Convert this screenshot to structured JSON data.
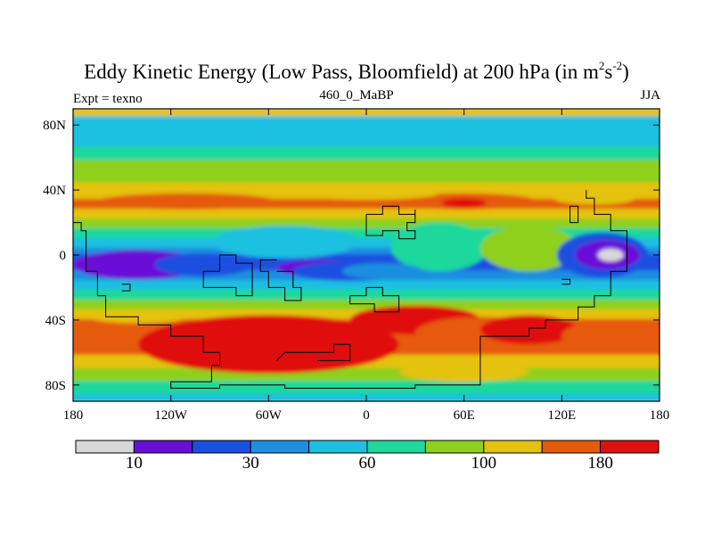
{
  "header": {
    "title_main": "Eddy Kinetic Energy (Low Pass, Bloomfield) at 200 hPa (in m",
    "title_sup1": "2",
    "title_mid": "s",
    "title_sup2": "-2",
    "title_end": ")",
    "left_label": "Expt = texno",
    "center_label": "460_0_MaBP",
    "right_label": "JJA"
  },
  "chart_data": {
    "type": "heatmap",
    "projection": "cylindrical equidistant",
    "x_range": [
      -180,
      180
    ],
    "y_range": [
      -90,
      90
    ],
    "x_ticks": [
      {
        "value": -180,
        "label": "180"
      },
      {
        "value": -120,
        "label": "120W"
      },
      {
        "value": -60,
        "label": "60W"
      },
      {
        "value": 0,
        "label": "0"
      },
      {
        "value": 60,
        "label": "60E"
      },
      {
        "value": 120,
        "label": "120E"
      },
      {
        "value": 180,
        "label": "180"
      }
    ],
    "y_ticks": [
      {
        "value": 80,
        "label": "80N"
      },
      {
        "value": 40,
        "label": "40N"
      },
      {
        "value": 0,
        "label": "0"
      },
      {
        "value": -40,
        "label": "40S"
      },
      {
        "value": -80,
        "label": "80S"
      }
    ],
    "colorbar": {
      "colors": [
        "#d7d7d7",
        "#6a0fd6",
        "#1a4fe0",
        "#1f8ee0",
        "#1ec0e0",
        "#1ed89c",
        "#8ed01e",
        "#e4c210",
        "#e65a0a",
        "#e01010"
      ],
      "bound_labels": [
        {
          "after_box": 1,
          "label": "10"
        },
        {
          "after_box": 3,
          "label": "30"
        },
        {
          "after_box": 5,
          "label": "60"
        },
        {
          "after_box": 7,
          "label": "100"
        },
        {
          "after_box": 9,
          "label": "180"
        }
      ]
    },
    "bands": [
      {
        "lat": 90,
        "level": 7
      },
      {
        "lat": 85,
        "level": 4
      },
      {
        "lat": 80,
        "level": 4
      },
      {
        "lat": 72,
        "level": 4
      },
      {
        "lat": 66,
        "level": 5
      },
      {
        "lat": 58,
        "level": 6
      },
      {
        "lat": 50,
        "level": 6
      },
      {
        "lat": 44,
        "level": 7
      },
      {
        "lat": 40,
        "level": 7
      },
      {
        "lat": 34,
        "level": 8
      },
      {
        "lat": 28,
        "level": 7
      },
      {
        "lat": 22,
        "level": 6
      },
      {
        "lat": 16,
        "level": 5
      },
      {
        "lat": 10,
        "level": 4
      },
      {
        "lat": 4,
        "level": 3
      },
      {
        "lat": 0,
        "level": 2
      },
      {
        "lat": -4,
        "level": 2
      },
      {
        "lat": -10,
        "level": 3
      },
      {
        "lat": -16,
        "level": 4
      },
      {
        "lat": -22,
        "level": 5
      },
      {
        "lat": -28,
        "level": 6
      },
      {
        "lat": -34,
        "level": 7
      },
      {
        "lat": -40,
        "level": 8
      },
      {
        "lat": -48,
        "level": 8
      },
      {
        "lat": -56,
        "level": 8
      },
      {
        "lat": -62,
        "level": 7
      },
      {
        "lat": -70,
        "level": 6
      },
      {
        "lat": -78,
        "level": 5
      },
      {
        "lat": -86,
        "level": 4
      },
      {
        "lat": -90,
        "level": 4
      }
    ],
    "features": [
      {
        "lon": -110,
        "lat": 33,
        "rx": 55,
        "ry": 5,
        "level": 8
      },
      {
        "lon": 60,
        "lat": 33,
        "rx": 45,
        "ry": 5,
        "level": 8
      },
      {
        "lon": 60,
        "lat": 32,
        "rx": 14,
        "ry": 3,
        "level": 9
      },
      {
        "lon": 140,
        "lat": 35,
        "rx": 25,
        "ry": 4,
        "level": 7
      },
      {
        "lon": 0,
        "lat": 38,
        "rx": 45,
        "ry": 4,
        "level": 7
      },
      {
        "lon": -50,
        "lat": 8,
        "rx": 45,
        "ry": 10,
        "level": 4
      },
      {
        "lon": 45,
        "lat": 5,
        "rx": 30,
        "ry": 15,
        "level": 5
      },
      {
        "lon": 100,
        "lat": 4,
        "rx": 30,
        "ry": 14,
        "level": 6
      },
      {
        "lon": 145,
        "lat": 0,
        "rx": 28,
        "ry": 14,
        "level": 2
      },
      {
        "lon": 148,
        "lat": 0,
        "rx": 20,
        "ry": 9,
        "level": 1
      },
      {
        "lon": 150,
        "lat": 0,
        "rx": 8,
        "ry": 4,
        "level": 0
      },
      {
        "lon": -140,
        "lat": -6,
        "rx": 40,
        "ry": 9,
        "level": 1
      },
      {
        "lon": -100,
        "lat": -6,
        "rx": 30,
        "ry": 7,
        "level": 2
      },
      {
        "lon": -30,
        "lat": -8,
        "rx": 25,
        "ry": 5,
        "level": 1
      },
      {
        "lon": -10,
        "lat": -10,
        "rx": 35,
        "ry": 6,
        "level": 2
      },
      {
        "lon": 10,
        "lat": -10,
        "rx": 25,
        "ry": 5,
        "level": 3
      },
      {
        "lon": -140,
        "lat": -38,
        "rx": 30,
        "ry": 4,
        "level": 7
      },
      {
        "lon": -60,
        "lat": -55,
        "rx": 80,
        "ry": 18,
        "level": 9
      },
      {
        "lon": 30,
        "lat": -40,
        "rx": 40,
        "ry": 9,
        "level": 9
      },
      {
        "lon": 70,
        "lat": -48,
        "rx": 40,
        "ry": 10,
        "level": 8
      },
      {
        "lon": 100,
        "lat": -46,
        "rx": 30,
        "ry": 9,
        "level": 9
      },
      {
        "lon": 150,
        "lat": -50,
        "rx": 30,
        "ry": 10,
        "level": 8
      },
      {
        "lon": 60,
        "lat": -72,
        "rx": 40,
        "ry": 6,
        "level": 7
      },
      {
        "lon": -20,
        "lat": 76,
        "rx": 50,
        "ry": 6,
        "level": 4
      }
    ],
    "coastlines": [
      [
        [
          -180,
          20
        ],
        [
          -175,
          20
        ],
        [
          -175,
          15
        ],
        [
          -172,
          15
        ],
        [
          -172,
          -10
        ],
        [
          -165,
          -10
        ],
        [
          -165,
          -25
        ],
        [
          -160,
          -25
        ],
        [
          -160,
          -38
        ],
        [
          -140,
          -38
        ],
        [
          -140,
          -43
        ],
        [
          -120,
          -43
        ],
        [
          -120,
          -50
        ],
        [
          -100,
          -50
        ],
        [
          -100,
          -60
        ],
        [
          -90,
          -60
        ],
        [
          -90,
          -68
        ],
        [
          -95,
          -68
        ],
        [
          -95,
          -78
        ],
        [
          -120,
          -78
        ],
        [
          -120,
          -82
        ],
        [
          -90,
          -82
        ],
        [
          -90,
          -80
        ],
        [
          -50,
          -80
        ],
        [
          -50,
          -82
        ],
        [
          30,
          -82
        ],
        [
          30,
          -80
        ],
        [
          70,
          -80
        ],
        [
          70,
          -50
        ],
        [
          100,
          -50
        ],
        [
          100,
          -45
        ],
        [
          110,
          -45
        ],
        [
          110,
          -40
        ],
        [
          130,
          -40
        ],
        [
          130,
          -32
        ],
        [
          140,
          -32
        ],
        [
          140,
          -25
        ],
        [
          150,
          -25
        ],
        [
          150,
          -10
        ],
        [
          160,
          -10
        ],
        [
          160,
          15
        ],
        [
          150,
          15
        ],
        [
          150,
          25
        ],
        [
          140,
          25
        ],
        [
          140,
          35
        ],
        [
          135,
          35
        ],
        [
          135,
          40
        ]
      ],
      [
        [
          -55,
          -10
        ],
        [
          -45,
          -10
        ],
        [
          -45,
          -20
        ],
        [
          -40,
          -20
        ],
        [
          -40,
          -28
        ],
        [
          -50,
          -28
        ],
        [
          -50,
          -20
        ],
        [
          -60,
          -20
        ],
        [
          -60,
          -10
        ],
        [
          -65,
          -10
        ],
        [
          -65,
          -3
        ],
        [
          -55,
          -3
        ]
      ],
      [
        [
          -55,
          -65
        ],
        [
          -50,
          -60
        ],
        [
          -20,
          -60
        ],
        [
          -20,
          -55
        ],
        [
          -10,
          -55
        ],
        [
          -10,
          -65
        ],
        [
          -30,
          -65
        ]
      ],
      [
        [
          -10,
          -25
        ],
        [
          0,
          -25
        ],
        [
          0,
          -20
        ],
        [
          10,
          -20
        ],
        [
          10,
          -25
        ],
        [
          20,
          -25
        ],
        [
          20,
          -35
        ],
        [
          5,
          -35
        ],
        [
          5,
          -30
        ],
        [
          -10,
          -30
        ],
        [
          -10,
          -25
        ]
      ],
      [
        [
          0,
          25
        ],
        [
          10,
          25
        ],
        [
          10,
          30
        ],
        [
          20,
          30
        ],
        [
          20,
          25
        ],
        [
          30,
          25
        ],
        [
          30,
          28
        ],
        [
          30,
          20
        ],
        [
          25,
          20
        ],
        [
          25,
          15
        ],
        [
          30,
          15
        ],
        [
          30,
          10
        ],
        [
          20,
          10
        ],
        [
          20,
          15
        ],
        [
          10,
          15
        ],
        [
          10,
          12
        ],
        [
          0,
          12
        ],
        [
          0,
          25
        ]
      ],
      [
        [
          -100,
          -10
        ],
        [
          -90,
          -10
        ],
        [
          -90,
          0
        ],
        [
          -80,
          0
        ],
        [
          -80,
          -5
        ],
        [
          -70,
          -5
        ],
        [
          -70,
          -25
        ],
        [
          -80,
          -25
        ],
        [
          -80,
          -20
        ],
        [
          -100,
          -20
        ],
        [
          -100,
          -10
        ]
      ],
      [
        [
          -150,
          -18
        ],
        [
          -145,
          -18
        ],
        [
          -145,
          -22
        ],
        [
          -150,
          -22
        ]
      ],
      [
        [
          125,
          20
        ],
        [
          130,
          20
        ],
        [
          130,
          30
        ],
        [
          125,
          30
        ],
        [
          125,
          20
        ]
      ],
      [
        [
          120,
          -15
        ],
        [
          125,
          -15
        ],
        [
          125,
          -18
        ],
        [
          120,
          -18
        ]
      ]
    ]
  }
}
